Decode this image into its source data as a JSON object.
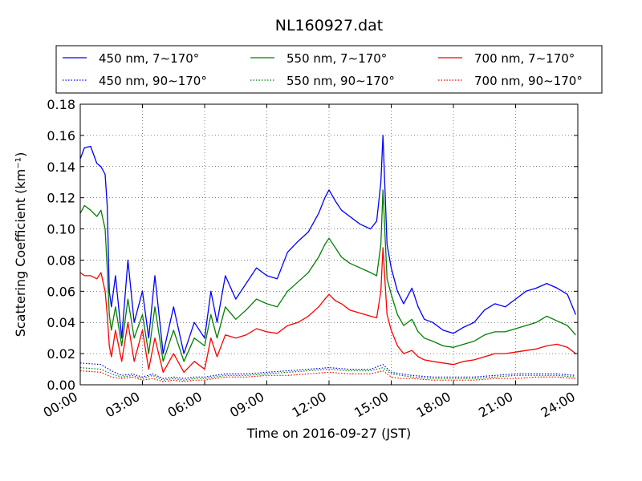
{
  "chart_data": {
    "type": "line",
    "title": "NL160927.dat",
    "xlabel": "Time on 2016-09-27 (JST)",
    "ylabel": "Scattering Coefficient (km⁻¹)",
    "xlim": [
      0,
      24
    ],
    "ylim": [
      0,
      0.18
    ],
    "grid": true,
    "legend": "top, outside plot, 3 columns",
    "xtick_values": [
      0,
      3,
      6,
      9,
      12,
      15,
      18,
      21,
      24
    ],
    "xtick_labels": [
      "00:00",
      "03:00",
      "06:00",
      "09:00",
      "12:00",
      "15:00",
      "18:00",
      "21:00",
      "24:00"
    ],
    "ytick_values": [
      0,
      0.02,
      0.04,
      0.06,
      0.08,
      0.1,
      0.12,
      0.14,
      0.16,
      0.18
    ],
    "ytick_labels": [
      "0.00",
      "0.02",
      "0.04",
      "0.06",
      "0.08",
      "0.10",
      "0.12",
      "0.14",
      "0.16",
      "0.18"
    ],
    "series": [
      {
        "name": "450 nm, 7∼170°",
        "color": "#0000ff",
        "dash": "solid",
        "x": [
          0,
          0.2,
          0.5,
          0.8,
          1.0,
          1.2,
          1.3,
          1.4,
          1.5,
          1.7,
          2.0,
          2.3,
          2.6,
          3.0,
          3.3,
          3.6,
          4.0,
          4.5,
          5.0,
          5.5,
          6.0,
          6.3,
          6.6,
          7.0,
          7.5,
          8.0,
          8.5,
          9.0,
          9.5,
          10.0,
          10.5,
          11.0,
          11.5,
          11.8,
          12.0,
          12.3,
          12.6,
          13.0,
          13.5,
          14.0,
          14.3,
          14.5,
          14.6,
          14.8,
          15.0,
          15.3,
          15.6,
          16.0,
          16.3,
          16.6,
          17.0,
          17.5,
          18.0,
          18.5,
          19.0,
          19.5,
          20.0,
          20.5,
          21.0,
          21.5,
          22.0,
          22.5,
          23.0,
          23.5,
          23.9
        ],
        "y": [
          0.145,
          0.152,
          0.153,
          0.142,
          0.14,
          0.135,
          0.115,
          0.06,
          0.05,
          0.07,
          0.03,
          0.08,
          0.04,
          0.06,
          0.03,
          0.07,
          0.02,
          0.05,
          0.02,
          0.04,
          0.03,
          0.06,
          0.04,
          0.07,
          0.055,
          0.065,
          0.075,
          0.07,
          0.068,
          0.085,
          0.092,
          0.098,
          0.11,
          0.12,
          0.125,
          0.118,
          0.112,
          0.108,
          0.103,
          0.1,
          0.105,
          0.13,
          0.16,
          0.09,
          0.075,
          0.06,
          0.052,
          0.062,
          0.05,
          0.042,
          0.04,
          0.035,
          0.033,
          0.037,
          0.04,
          0.048,
          0.052,
          0.05,
          0.055,
          0.06,
          0.062,
          0.065,
          0.062,
          0.058,
          0.045
        ]
      },
      {
        "name": "550 nm, 7∼170°",
        "color": "#008000",
        "dash": "solid",
        "x": [
          0,
          0.2,
          0.5,
          0.8,
          1.0,
          1.2,
          1.3,
          1.4,
          1.5,
          1.7,
          2.0,
          2.3,
          2.6,
          3.0,
          3.3,
          3.6,
          4.0,
          4.5,
          5.0,
          5.5,
          6.0,
          6.3,
          6.6,
          7.0,
          7.5,
          8.0,
          8.5,
          9.0,
          9.5,
          10.0,
          10.5,
          11.0,
          11.5,
          11.8,
          12.0,
          12.3,
          12.6,
          13.0,
          13.5,
          14.0,
          14.3,
          14.5,
          14.6,
          14.8,
          15.0,
          15.3,
          15.6,
          16.0,
          16.3,
          16.6,
          17.0,
          17.5,
          18.0,
          18.5,
          19.0,
          19.5,
          20.0,
          20.5,
          21.0,
          21.5,
          22.0,
          22.5,
          23.0,
          23.5,
          23.9
        ],
        "y": [
          0.11,
          0.115,
          0.112,
          0.108,
          0.112,
          0.1,
          0.075,
          0.045,
          0.035,
          0.05,
          0.025,
          0.055,
          0.03,
          0.045,
          0.02,
          0.05,
          0.015,
          0.035,
          0.015,
          0.03,
          0.025,
          0.045,
          0.03,
          0.05,
          0.042,
          0.048,
          0.055,
          0.052,
          0.05,
          0.06,
          0.066,
          0.072,
          0.082,
          0.09,
          0.094,
          0.088,
          0.082,
          0.078,
          0.075,
          0.072,
          0.07,
          0.09,
          0.125,
          0.068,
          0.058,
          0.045,
          0.038,
          0.042,
          0.034,
          0.03,
          0.028,
          0.025,
          0.024,
          0.026,
          0.028,
          0.032,
          0.034,
          0.034,
          0.036,
          0.038,
          0.04,
          0.044,
          0.041,
          0.038,
          0.032
        ]
      },
      {
        "name": "700 nm, 7∼170°",
        "color": "#ff0000",
        "dash": "solid",
        "x": [
          0,
          0.2,
          0.5,
          0.8,
          1.0,
          1.2,
          1.3,
          1.4,
          1.5,
          1.7,
          2.0,
          2.3,
          2.6,
          3.0,
          3.3,
          3.6,
          4.0,
          4.5,
          5.0,
          5.5,
          6.0,
          6.3,
          6.6,
          7.0,
          7.5,
          8.0,
          8.5,
          9.0,
          9.5,
          10.0,
          10.5,
          11.0,
          11.5,
          11.8,
          12.0,
          12.3,
          12.6,
          13.0,
          13.5,
          14.0,
          14.3,
          14.5,
          14.6,
          14.8,
          15.0,
          15.3,
          15.6,
          16.0,
          16.3,
          16.6,
          17.0,
          17.5,
          18.0,
          18.5,
          19.0,
          19.5,
          20.0,
          20.5,
          21.0,
          21.5,
          22.0,
          22.5,
          23.0,
          23.5,
          23.9
        ],
        "y": [
          0.072,
          0.07,
          0.07,
          0.068,
          0.072,
          0.06,
          0.045,
          0.025,
          0.018,
          0.035,
          0.015,
          0.04,
          0.015,
          0.035,
          0.01,
          0.03,
          0.008,
          0.02,
          0.008,
          0.015,
          0.01,
          0.03,
          0.018,
          0.032,
          0.03,
          0.032,
          0.036,
          0.034,
          0.033,
          0.038,
          0.04,
          0.044,
          0.05,
          0.055,
          0.058,
          0.054,
          0.052,
          0.048,
          0.046,
          0.044,
          0.043,
          0.06,
          0.088,
          0.045,
          0.035,
          0.025,
          0.02,
          0.022,
          0.018,
          0.016,
          0.015,
          0.014,
          0.013,
          0.015,
          0.016,
          0.018,
          0.02,
          0.02,
          0.021,
          0.022,
          0.023,
          0.025,
          0.026,
          0.024,
          0.02
        ]
      },
      {
        "name": "450 nm, 90∼170°",
        "color": "#0000ff",
        "dash": "dotted",
        "x": [
          0,
          1.0,
          1.5,
          2.0,
          2.5,
          3.0,
          3.5,
          4.0,
          4.5,
          5.0,
          5.5,
          6.0,
          6.5,
          7.0,
          8.0,
          9.0,
          10.0,
          11.0,
          12.0,
          13.0,
          14.0,
          14.6,
          15.0,
          15.5,
          16.0,
          17.0,
          18.0,
          19.0,
          20.0,
          21.0,
          22.0,
          23.0,
          23.9
        ],
        "y": [
          0.014,
          0.013,
          0.009,
          0.006,
          0.007,
          0.005,
          0.007,
          0.004,
          0.005,
          0.004,
          0.005,
          0.005,
          0.006,
          0.007,
          0.007,
          0.008,
          0.009,
          0.01,
          0.011,
          0.01,
          0.01,
          0.013,
          0.008,
          0.007,
          0.006,
          0.005,
          0.005,
          0.005,
          0.006,
          0.007,
          0.007,
          0.007,
          0.006
        ]
      },
      {
        "name": "550 nm, 90∼170°",
        "color": "#008000",
        "dash": "dotted",
        "x": [
          0,
          1.0,
          1.5,
          2.0,
          2.5,
          3.0,
          3.5,
          4.0,
          4.5,
          5.0,
          5.5,
          6.0,
          6.5,
          7.0,
          8.0,
          9.0,
          10.0,
          11.0,
          12.0,
          13.0,
          14.0,
          14.6,
          15.0,
          15.5,
          16.0,
          17.0,
          18.0,
          19.0,
          20.0,
          21.0,
          22.0,
          23.0,
          23.9
        ],
        "y": [
          0.011,
          0.01,
          0.007,
          0.005,
          0.006,
          0.004,
          0.006,
          0.003,
          0.004,
          0.003,
          0.004,
          0.004,
          0.005,
          0.006,
          0.006,
          0.007,
          0.008,
          0.009,
          0.01,
          0.009,
          0.009,
          0.011,
          0.007,
          0.006,
          0.005,
          0.004,
          0.004,
          0.004,
          0.005,
          0.006,
          0.006,
          0.006,
          0.005
        ]
      },
      {
        "name": "700 nm, 90∼170°",
        "color": "#ff0000",
        "dash": "dotted",
        "x": [
          0,
          1.0,
          1.5,
          2.0,
          2.5,
          3.0,
          3.5,
          4.0,
          4.5,
          5.0,
          5.5,
          6.0,
          6.5,
          7.0,
          8.0,
          9.0,
          10.0,
          11.0,
          12.0,
          13.0,
          14.0,
          14.6,
          15.0,
          15.5,
          16.0,
          17.0,
          18.0,
          19.0,
          20.0,
          21.0,
          22.0,
          23.0,
          23.9
        ],
        "y": [
          0.009,
          0.008,
          0.005,
          0.004,
          0.005,
          0.003,
          0.004,
          0.002,
          0.003,
          0.002,
          0.003,
          0.003,
          0.004,
          0.005,
          0.005,
          0.006,
          0.006,
          0.007,
          0.008,
          0.007,
          0.007,
          0.009,
          0.005,
          0.004,
          0.004,
          0.003,
          0.003,
          0.003,
          0.004,
          0.004,
          0.005,
          0.005,
          0.004
        ]
      }
    ]
  }
}
